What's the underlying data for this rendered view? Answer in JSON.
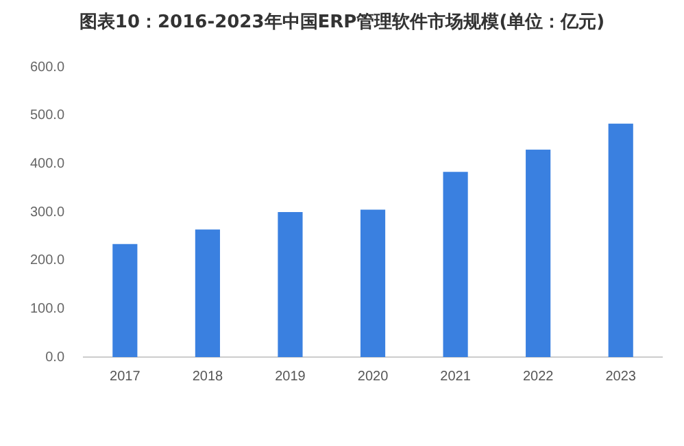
{
  "chart_data": {
    "type": "bar",
    "title": "图表10：2016-2023年中国ERP管理软件市场规模(单位：亿元)",
    "categories": [
      "2017",
      "2018",
      "2019",
      "2020",
      "2021",
      "2022",
      "2023"
    ],
    "values": [
      234,
      264,
      300,
      305,
      383,
      429,
      483
    ],
    "color": "#3a80e0",
    "ylim": [
      0,
      600
    ],
    "yticks": [
      {
        "value": 0,
        "label": "0.0"
      },
      {
        "value": 100,
        "label": "100.0"
      },
      {
        "value": 200,
        "label": "200.0"
      },
      {
        "value": 300,
        "label": "300.0"
      },
      {
        "value": 400,
        "label": "400.0"
      },
      {
        "value": 500,
        "label": "500.0"
      },
      {
        "value": 600,
        "label": "600.0"
      }
    ],
    "grid": false,
    "legend": false
  }
}
